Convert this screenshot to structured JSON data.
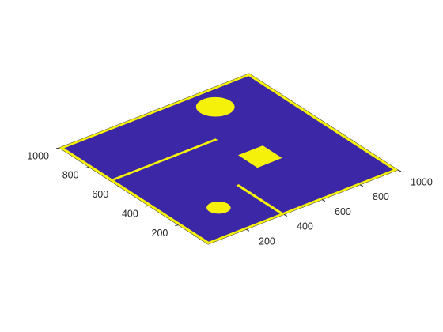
{
  "chart_data": {
    "type": "heatmap",
    "view": "3-D isometric surface / occupancy map",
    "title": "",
    "xlabel": "",
    "ylabel": "",
    "xlim": [
      0,
      1000
    ],
    "ylim": [
      0,
      1000
    ],
    "x_ticks": [
      "200",
      "400",
      "600",
      "800",
      "1000"
    ],
    "y_ticks": [
      "200",
      "400",
      "600",
      "800",
      "1000"
    ],
    "grid": false,
    "colors": {
      "free": "#3c27a6",
      "obstacle": "#f5f10a",
      "edge": "#3b3b3b"
    },
    "obstacles": [
      {
        "name": "border-bottom",
        "shape": "rect",
        "x": [
          0,
          1000
        ],
        "y": [
          0,
          15
        ]
      },
      {
        "name": "border-top",
        "shape": "rect",
        "x": [
          0,
          1000
        ],
        "y": [
          985,
          1000
        ]
      },
      {
        "name": "border-left",
        "shape": "rect",
        "x": [
          0,
          15
        ],
        "y": [
          0,
          1000
        ]
      },
      {
        "name": "border-right",
        "shape": "rect",
        "x": [
          985,
          1000
        ],
        "y": [
          0,
          1000
        ]
      },
      {
        "name": "wall-left",
        "shape": "rect",
        "x": [
          15,
          560
        ],
        "y": [
          650,
          665
        ]
      },
      {
        "name": "wall-bottom",
        "shape": "rect",
        "x": [
          390,
          405
        ],
        "y": [
          0,
          310
        ]
      },
      {
        "name": "circle-large",
        "shape": "circle",
        "cx": 720,
        "cy": 870,
        "r": 80
      },
      {
        "name": "circle-small",
        "shape": "circle",
        "cx": 220,
        "cy": 210,
        "r": 50
      },
      {
        "name": "square",
        "shape": "rect",
        "x": [
          550,
          680
        ],
        "y": [
          370,
          500
        ]
      }
    ]
  }
}
